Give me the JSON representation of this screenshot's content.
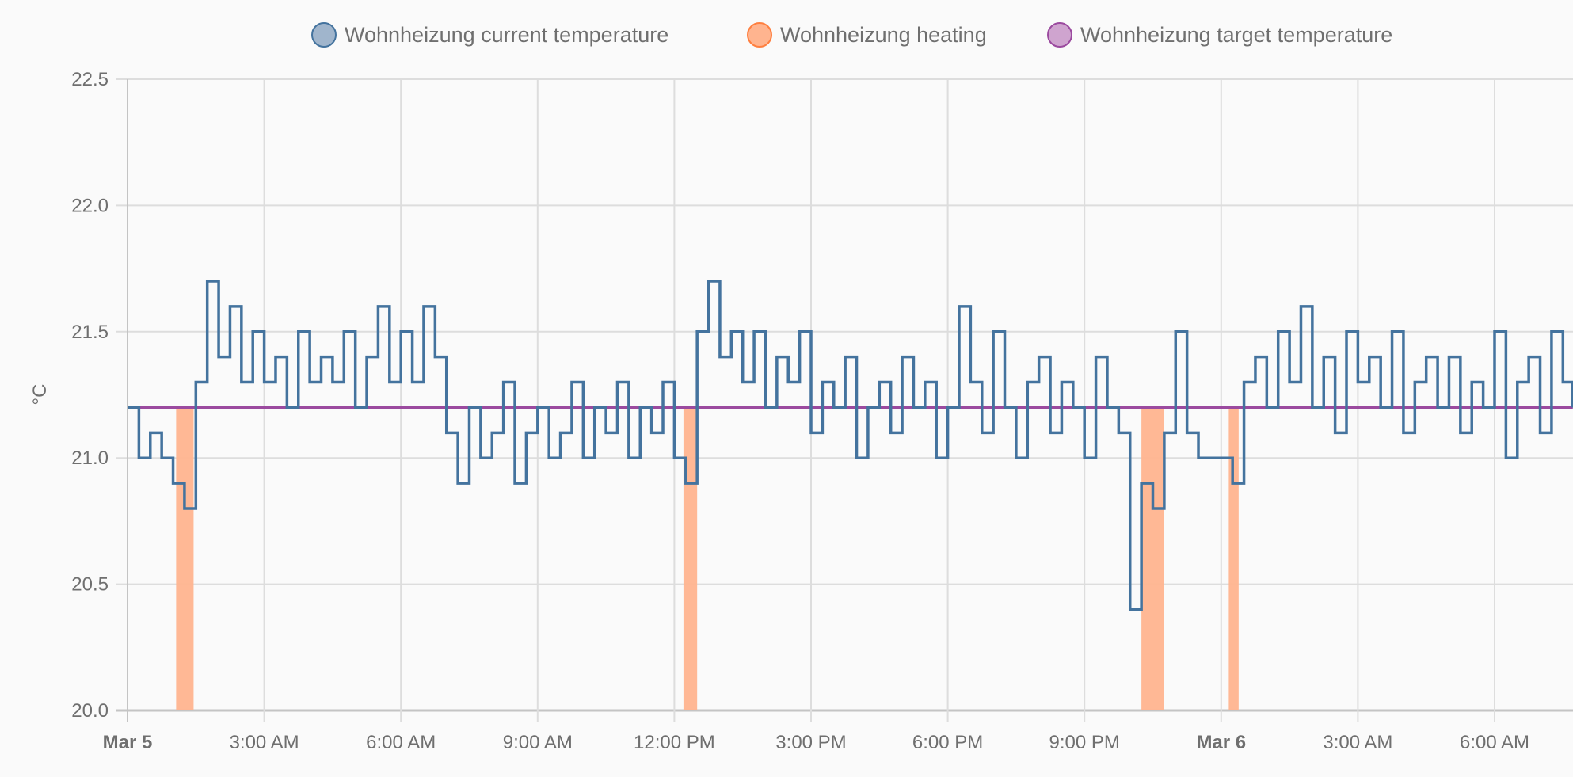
{
  "chart_data": {
    "type": "line",
    "ylabel": "°C",
    "xlabel": "",
    "ylim": [
      20.0,
      22.5
    ],
    "xlim": [
      "Mar 5 00:00",
      "Mar 6 07:43"
    ],
    "grid": true,
    "legend_position": "top",
    "y_ticks": [
      "20.0",
      "20.5",
      "21.0",
      "21.5",
      "22.0",
      "22.5"
    ],
    "x_ticks": [
      {
        "label": "Mar 5",
        "at": "Mar 5 00:00",
        "bold": true
      },
      {
        "label": "3:00 AM",
        "at": "Mar 5 03:00"
      },
      {
        "label": "6:00 AM",
        "at": "Mar 5 06:00"
      },
      {
        "label": "9:00 AM",
        "at": "Mar 5 09:00"
      },
      {
        "label": "12:00 PM",
        "at": "Mar 5 12:00"
      },
      {
        "label": "3:00 PM",
        "at": "Mar 5 15:00"
      },
      {
        "label": "6:00 PM",
        "at": "Mar 5 18:00"
      },
      {
        "label": "9:00 PM",
        "at": "Mar 5 21:00"
      },
      {
        "label": "Mar 6",
        "at": "Mar 6 00:00",
        "bold": true
      },
      {
        "label": "3:00 AM",
        "at": "Mar 6 03:00"
      },
      {
        "label": "6:00 AM",
        "at": "Mar 6 06:00"
      }
    ],
    "series": [
      {
        "name": "Wohnheizung current temperature",
        "kind": "step-line",
        "color": "#44739e",
        "fill": "#a0b5cc",
        "x": [
          "Mar 5 00:00",
          "Mar 5 00:15",
          "Mar 5 00:30",
          "Mar 5 00:45",
          "Mar 5 01:00",
          "Mar 5 01:15",
          "Mar 5 01:30",
          "Mar 5 01:45",
          "Mar 5 02:00",
          "Mar 5 02:15",
          "Mar 5 02:30",
          "Mar 5 02:45",
          "Mar 5 03:00",
          "Mar 5 03:15",
          "Mar 5 03:30",
          "Mar 5 03:45",
          "Mar 5 04:00",
          "Mar 5 04:15",
          "Mar 5 04:30",
          "Mar 5 04:45",
          "Mar 5 05:00",
          "Mar 5 05:15",
          "Mar 5 05:30",
          "Mar 5 05:45",
          "Mar 5 06:00",
          "Mar 5 06:15",
          "Mar 5 06:30",
          "Mar 5 06:45",
          "Mar 5 07:00",
          "Mar 5 07:15",
          "Mar 5 07:30",
          "Mar 5 07:45",
          "Mar 5 08:00",
          "Mar 5 08:15",
          "Mar 5 08:30",
          "Mar 5 08:45",
          "Mar 5 09:00",
          "Mar 5 09:15",
          "Mar 5 09:30",
          "Mar 5 09:45",
          "Mar 5 10:00",
          "Mar 5 10:15",
          "Mar 5 10:30",
          "Mar 5 10:45",
          "Mar 5 11:00",
          "Mar 5 11:15",
          "Mar 5 11:30",
          "Mar 5 11:45",
          "Mar 5 12:00",
          "Mar 5 12:15",
          "Mar 5 12:30",
          "Mar 5 12:45",
          "Mar 5 13:00",
          "Mar 5 13:15",
          "Mar 5 13:30",
          "Mar 5 13:45",
          "Mar 5 14:00",
          "Mar 5 14:15",
          "Mar 5 14:30",
          "Mar 5 14:45",
          "Mar 5 15:00",
          "Mar 5 15:15",
          "Mar 5 15:30",
          "Mar 5 15:45",
          "Mar 5 16:00",
          "Mar 5 16:15",
          "Mar 5 16:30",
          "Mar 5 16:45",
          "Mar 5 17:00",
          "Mar 5 17:15",
          "Mar 5 17:30",
          "Mar 5 17:45",
          "Mar 5 18:00",
          "Mar 5 18:15",
          "Mar 5 18:30",
          "Mar 5 18:45",
          "Mar 5 19:00",
          "Mar 5 19:15",
          "Mar 5 19:30",
          "Mar 5 19:45",
          "Mar 5 20:00",
          "Mar 5 20:15",
          "Mar 5 20:30",
          "Mar 5 20:45",
          "Mar 5 21:00",
          "Mar 5 21:15",
          "Mar 5 21:30",
          "Mar 5 21:45",
          "Mar 5 22:00",
          "Mar 5 22:15",
          "Mar 5 22:30",
          "Mar 5 22:45",
          "Mar 5 23:00",
          "Mar 5 23:15",
          "Mar 5 23:30",
          "Mar 5 23:45",
          "Mar 6 00:00",
          "Mar 6 00:15",
          "Mar 6 00:30",
          "Mar 6 00:45",
          "Mar 6 01:00",
          "Mar 6 01:15",
          "Mar 6 01:30",
          "Mar 6 01:45",
          "Mar 6 02:00",
          "Mar 6 02:15",
          "Mar 6 02:30",
          "Mar 6 02:45",
          "Mar 6 03:00",
          "Mar 6 03:15",
          "Mar 6 03:30",
          "Mar 6 03:45",
          "Mar 6 04:00",
          "Mar 6 04:15",
          "Mar 6 04:30",
          "Mar 6 04:45",
          "Mar 6 05:00",
          "Mar 6 05:15",
          "Mar 6 05:30",
          "Mar 6 05:45",
          "Mar 6 06:00",
          "Mar 6 06:15",
          "Mar 6 06:30",
          "Mar 6 06:45",
          "Mar 6 07:00",
          "Mar 6 07:15",
          "Mar 6 07:30",
          "Mar 6 07:43"
        ],
        "values": [
          21.2,
          21.0,
          21.1,
          21.0,
          20.9,
          20.8,
          21.3,
          21.7,
          21.4,
          21.6,
          21.3,
          21.5,
          21.3,
          21.4,
          21.2,
          21.5,
          21.3,
          21.4,
          21.3,
          21.5,
          21.2,
          21.4,
          21.6,
          21.3,
          21.5,
          21.3,
          21.6,
          21.4,
          21.1,
          20.9,
          21.2,
          21.0,
          21.1,
          21.3,
          20.9,
          21.1,
          21.2,
          21.0,
          21.1,
          21.3,
          21.0,
          21.2,
          21.1,
          21.3,
          21.0,
          21.2,
          21.1,
          21.3,
          21.0,
          20.9,
          21.5,
          21.7,
          21.4,
          21.5,
          21.3,
          21.5,
          21.2,
          21.4,
          21.3,
          21.5,
          21.1,
          21.3,
          21.2,
          21.4,
          21.0,
          21.2,
          21.3,
          21.1,
          21.4,
          21.2,
          21.3,
          21.0,
          21.2,
          21.6,
          21.3,
          21.1,
          21.5,
          21.2,
          21.0,
          21.3,
          21.4,
          21.1,
          21.3,
          21.2,
          21.0,
          21.4,
          21.2,
          21.1,
          20.4,
          20.9,
          20.8,
          21.1,
          21.5,
          21.1,
          21.0,
          21.0,
          21.0,
          20.9,
          21.3,
          21.4,
          21.2,
          21.5,
          21.3,
          21.6,
          21.2,
          21.4,
          21.1,
          21.5,
          21.3,
          21.4,
          21.2,
          21.5,
          21.1,
          21.3,
          21.4,
          21.2,
          21.4,
          21.1,
          21.3,
          21.2,
          21.5,
          21.0,
          21.3,
          21.4,
          21.1,
          21.5,
          21.3,
          21.2
        ]
      },
      {
        "name": "Wohnheizung heating",
        "kind": "intervals",
        "color": "#ff7f3f",
        "fill": "#ffb48f",
        "intervals": [
          [
            "Mar 5 01:04",
            "Mar 5 01:27"
          ],
          [
            "Mar 5 12:12",
            "Mar 5 12:30"
          ],
          [
            "Mar 5 22:15",
            "Mar 5 22:45"
          ],
          [
            "Mar 6 00:10",
            "Mar 6 00:23"
          ]
        ]
      },
      {
        "name": "Wohnheizung target temperature",
        "kind": "step-line",
        "color": "#9b4a9f",
        "fill": "#cfa4cf",
        "x": [
          "Mar 5 00:00",
          "Mar 6 07:43"
        ],
        "values": [
          21.2,
          21.2
        ]
      }
    ]
  }
}
